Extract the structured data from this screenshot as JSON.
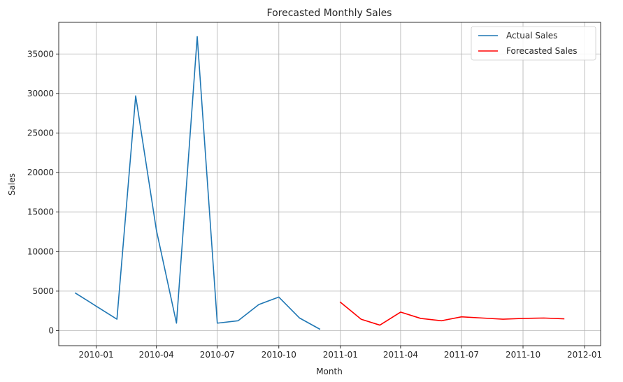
{
  "chart_data": {
    "type": "line",
    "title": "Forecasted Monthly Sales",
    "xlabel": "Month",
    "ylabel": "Sales",
    "x_axis_type": "date",
    "xlim": [
      "2009-11-06",
      "2012-01-25"
    ],
    "ylim": [
      -1900,
      39000
    ],
    "x_ticks": [
      "2010-01",
      "2010-04",
      "2010-07",
      "2010-10",
      "2011-01",
      "2011-04",
      "2011-07",
      "2011-10",
      "2012-01"
    ],
    "y_ticks": [
      0,
      5000,
      10000,
      15000,
      20000,
      25000,
      30000,
      35000
    ],
    "grid": true,
    "legend_position": "top-right",
    "series": [
      {
        "name": "Actual Sales",
        "color": "#1f77b4",
        "points": [
          {
            "x": "2009-12-01",
            "y": 4750
          },
          {
            "x": "2010-01-01",
            "y": 3100
          },
          {
            "x": "2010-02-01",
            "y": 1450
          },
          {
            "x": "2010-03-01",
            "y": 29700
          },
          {
            "x": "2010-04-01",
            "y": 12700
          },
          {
            "x": "2010-05-01",
            "y": 950
          },
          {
            "x": "2010-06-01",
            "y": 37200
          },
          {
            "x": "2010-07-01",
            "y": 950
          },
          {
            "x": "2010-08-01",
            "y": 1250
          },
          {
            "x": "2010-09-01",
            "y": 3300
          },
          {
            "x": "2010-10-01",
            "y": 4250
          },
          {
            "x": "2010-11-01",
            "y": 1600
          },
          {
            "x": "2010-12-01",
            "y": 200
          }
        ]
      },
      {
        "name": "Forecasted Sales",
        "color": "#ff0000",
        "points": [
          {
            "x": "2011-01-01",
            "y": 3600
          },
          {
            "x": "2011-02-01",
            "y": 1450
          },
          {
            "x": "2011-03-01",
            "y": 700
          },
          {
            "x": "2011-04-01",
            "y": 2350
          },
          {
            "x": "2011-05-01",
            "y": 1550
          },
          {
            "x": "2011-06-01",
            "y": 1250
          },
          {
            "x": "2011-07-01",
            "y": 1750
          },
          {
            "x": "2011-08-01",
            "y": 1600
          },
          {
            "x": "2011-09-01",
            "y": 1450
          },
          {
            "x": "2011-10-01",
            "y": 1550
          },
          {
            "x": "2011-11-01",
            "y": 1600
          },
          {
            "x": "2011-12-01",
            "y": 1500
          }
        ]
      }
    ]
  }
}
